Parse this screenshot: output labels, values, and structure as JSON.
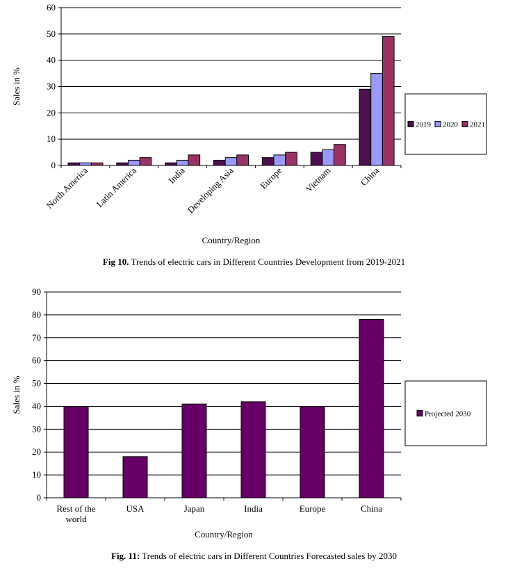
{
  "chart_data": [
    {
      "type": "bar",
      "categories": [
        "North America",
        "Latin America",
        "India",
        "Developing Asia",
        "Europe",
        "Vietnam",
        "China"
      ],
      "series": [
        {
          "name": "2019",
          "values": [
            1,
            1,
            1,
            2,
            3,
            5,
            29
          ],
          "color": "#4d0f4f"
        },
        {
          "name": "2020",
          "values": [
            1,
            2,
            2,
            3,
            4,
            6,
            35
          ],
          "color": "#9999ff"
        },
        {
          "name": "2021",
          "values": [
            1,
            3,
            4,
            4,
            5,
            8,
            49
          ],
          "color": "#993366"
        }
      ],
      "xlabel": "Country/Region",
      "ylabel": "Sales in %",
      "ylim": [
        0,
        60
      ],
      "yticks": [
        0,
        10,
        20,
        30,
        40,
        50,
        60
      ],
      "grid": true,
      "legend_position": "right",
      "caption_label": "Fig 10.",
      "caption_text": " Trends of electric cars in Different Countries Development from 2019-2021"
    },
    {
      "type": "bar",
      "categories": [
        "Rest of the world",
        "USA",
        "Japan",
        "India",
        "Europe",
        "China"
      ],
      "category_lines": [
        [
          "Rest of the",
          "world"
        ],
        [
          "USA"
        ],
        [
          "Japan"
        ],
        [
          "India"
        ],
        [
          "Europe"
        ],
        [
          "China"
        ]
      ],
      "series": [
        {
          "name": "Projected 2030",
          "values": [
            40,
            18,
            41,
            42,
            40,
            78
          ],
          "color": "#660066"
        }
      ],
      "xlabel": "Country/Region",
      "ylabel": "Sales in %",
      "ylim": [
        0,
        90
      ],
      "yticks": [
        0,
        10,
        20,
        30,
        40,
        50,
        60,
        70,
        80,
        90
      ],
      "grid": true,
      "legend_position": "right",
      "caption_label": "Fig. 11:",
      "caption_text": " Trends of electric cars in Different Countries Forecasted sales by 2030"
    }
  ]
}
